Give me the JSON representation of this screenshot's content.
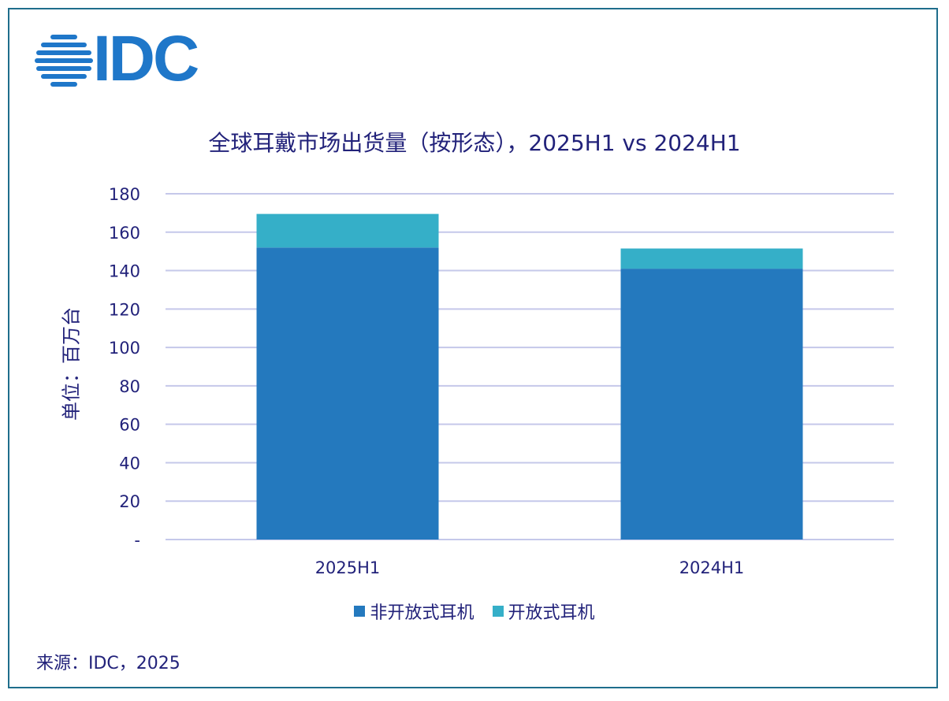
{
  "logo": {
    "text": "IDC",
    "icon": "idc-globe-icon",
    "color": "#1f77c9"
  },
  "source": "来源：IDC，2025",
  "chart_data": {
    "type": "bar",
    "stacked": true,
    "title": "全球耳戴市场出货量（按形态），2025H1 vs 2024H1",
    "xlabel": "",
    "ylabel": "单位：百万台",
    "categories": [
      "2025H1",
      "2024H1"
    ],
    "series": [
      {
        "name": "非开放式耳机",
        "values": [
          152,
          141
        ],
        "color": "#2479be"
      },
      {
        "name": "开放式耳机",
        "values": [
          17.5,
          10.5
        ],
        "color": "#35afc8"
      }
    ],
    "ylim": [
      0,
      180
    ],
    "yticks": [
      {
        "value": 0,
        "label": "-"
      },
      {
        "value": 20,
        "label": "20"
      },
      {
        "value": 40,
        "label": "40"
      },
      {
        "value": 60,
        "label": "60"
      },
      {
        "value": 80,
        "label": "80"
      },
      {
        "value": 100,
        "label": "100"
      },
      {
        "value": 120,
        "label": "120"
      },
      {
        "value": 140,
        "label": "140"
      },
      {
        "value": 160,
        "label": "160"
      },
      {
        "value": 180,
        "label": "180"
      }
    ],
    "grid": true,
    "legend_position": "bottom",
    "text_color": "#22227a",
    "grid_color": "#c5c8ea"
  }
}
